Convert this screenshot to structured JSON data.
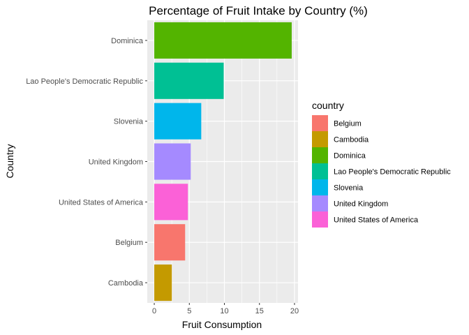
{
  "chart_data": {
    "type": "bar",
    "orientation": "horizontal",
    "title": "Percentage of Fruit Intake by Country (%)",
    "xlabel": "Fruit Consumption",
    "ylabel": "Country",
    "xlim": [
      -1,
      20.5
    ],
    "x_ticks": [
      0,
      5,
      10,
      15,
      20
    ],
    "grid": true,
    "legend_position": "right",
    "legend_title": "country",
    "categories": [
      "Dominica",
      "Lao People's Democratic Republic",
      "Slovenia",
      "United Kingdom",
      "United States of America",
      "Belgium",
      "Cambodia"
    ],
    "values": [
      19.6,
      9.9,
      6.7,
      5.2,
      4.8,
      4.4,
      2.5
    ],
    "bar_colors": [
      "#53B400",
      "#00C094",
      "#00B6EB",
      "#A58AFF",
      "#FB61D7",
      "#F8766D",
      "#C49A00"
    ],
    "legend": [
      {
        "label": "Belgium",
        "color": "#F8766D"
      },
      {
        "label": "Cambodia",
        "color": "#C49A00"
      },
      {
        "label": "Dominica",
        "color": "#53B400"
      },
      {
        "label": "Lao People's Democratic Republic",
        "color": "#00C094"
      },
      {
        "label": "Slovenia",
        "color": "#00B6EB"
      },
      {
        "label": "United Kingdom",
        "color": "#A58AFF"
      },
      {
        "label": "United States of America",
        "color": "#FB61D7"
      }
    ],
    "panel_background": "#EBEBEB",
    "grid_color": "#FFFFFF"
  }
}
